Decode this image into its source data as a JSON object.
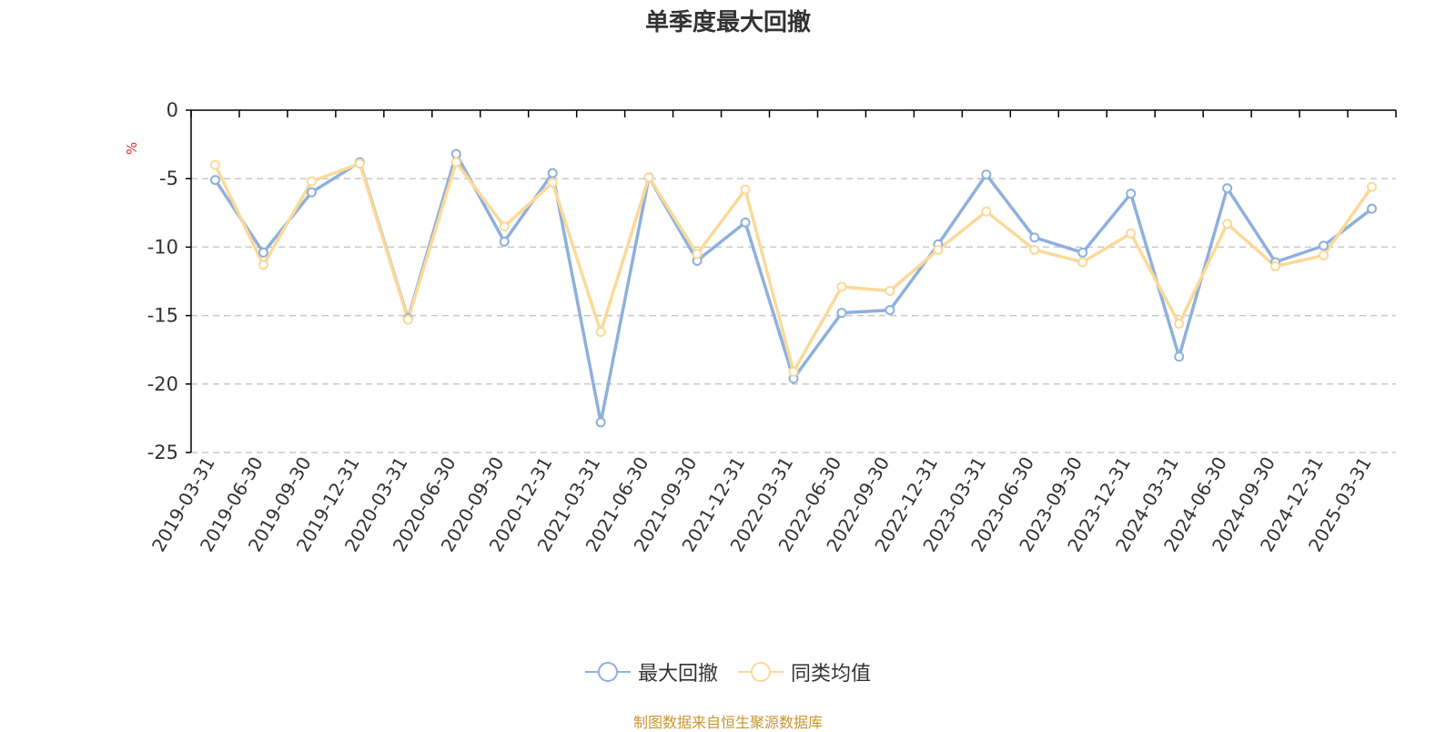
{
  "title": "单季度最大回撤",
  "unit_label": "%",
  "source_note": "制图数据来自恒生聚源数据库",
  "colors": {
    "series_0": "#8eb0dc",
    "series_1": "#fbd999",
    "axis": "#000000",
    "grid": "#c8c8c8",
    "text": "#333333"
  },
  "legend": [
    "最大回撤",
    "同类均值"
  ],
  "chart_data": {
    "type": "line",
    "title": "单季度最大回撤",
    "ylabel": "%",
    "ylim": [
      -25,
      0
    ],
    "yticks": [
      0,
      -5,
      -10,
      -15,
      -20,
      -25
    ],
    "grid": true,
    "legend_position": "bottom",
    "x": [
      "2019-03-31",
      "2019-06-30",
      "2019-09-30",
      "2019-12-31",
      "2020-03-31",
      "2020-06-30",
      "2020-09-30",
      "2020-12-31",
      "2021-03-31",
      "2021-06-30",
      "2021-09-30",
      "2021-12-31",
      "2022-03-31",
      "2022-06-30",
      "2022-09-30",
      "2022-12-31",
      "2023-03-31",
      "2023-06-30",
      "2023-09-30",
      "2023-12-31",
      "2024-03-31",
      "2024-06-30",
      "2024-09-30",
      "2024-12-31",
      "2025-03-31"
    ],
    "series": [
      {
        "name": "最大回撤",
        "values": [
          -5.1,
          -10.4,
          -6.0,
          -3.8,
          -15.2,
          -3.2,
          -9.6,
          -4.6,
          -22.8,
          -4.9,
          -11.0,
          -8.2,
          -19.6,
          -14.8,
          -14.6,
          -9.8,
          -4.7,
          -9.3,
          -10.4,
          -6.1,
          -18.0,
          -5.7,
          -11.1,
          -9.9,
          -7.2
        ]
      },
      {
        "name": "同类均值",
        "values": [
          -4.0,
          -11.3,
          -5.2,
          -3.9,
          -15.3,
          -3.8,
          -8.5,
          -5.3,
          -16.2,
          -4.9,
          -10.5,
          -5.8,
          -19.1,
          -12.9,
          -13.2,
          -10.2,
          -7.4,
          -10.2,
          -11.1,
          -9.0,
          -15.6,
          -8.3,
          -11.4,
          -10.6,
          -5.6
        ]
      }
    ]
  }
}
